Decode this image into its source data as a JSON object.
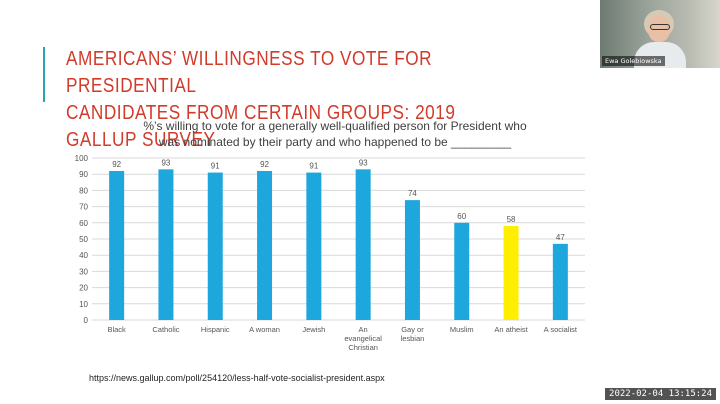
{
  "slide": {
    "title_line1": "AMERICANS’ WILLINGNESS TO VOTE FOR PRESIDENTIAL",
    "title_line2": "CANDIDATES FROM CERTAIN GROUPS: 2019 GALLUP SURVEY",
    "subtitle_line1": "%’s willing to vote for a generally well-qualified person for President who",
    "subtitle_line2": "was nominated by their party and who happened to be _________",
    "source_url": "https://news.gallup.com/poll/254120/less-half-vote-socialist-president.aspx"
  },
  "webcam": {
    "participant_name": "Ewa Golebiowska"
  },
  "recording": {
    "timestamp": "2022-02-04  13:15:24"
  },
  "colors": {
    "title": "#d23a2a",
    "accent": "#2aa4b0",
    "bar": "#1ea7dc",
    "highlight": "#ffee00"
  },
  "chart_data": {
    "type": "bar",
    "title": "%’s willing to vote for a generally well-qualified person for President who was nominated by their party and who happened to be _________",
    "categories": [
      [
        "Black"
      ],
      [
        "Catholic"
      ],
      [
        "Hispanic"
      ],
      [
        "A woman"
      ],
      [
        "Jewish"
      ],
      [
        "An",
        "evangelical",
        "Christian"
      ],
      [
        "Gay or",
        "lesbian"
      ],
      [
        "Muslim"
      ],
      [
        "An atheist"
      ],
      [
        "A socialist"
      ]
    ],
    "values": [
      92,
      93,
      91,
      92,
      91,
      93,
      74,
      60,
      58,
      47
    ],
    "highlight_index": 8,
    "ylim": [
      0,
      100
    ],
    "yticks": [
      0,
      10,
      20,
      30,
      40,
      50,
      60,
      70,
      80,
      90,
      100
    ],
    "grid": true,
    "xlabel": "",
    "ylabel": ""
  }
}
